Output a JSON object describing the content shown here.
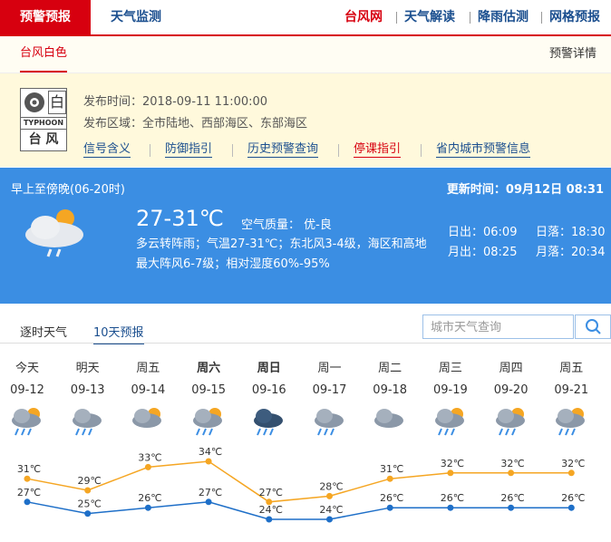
{
  "nav": {
    "tabs": [
      "预警预报",
      "天气监测"
    ],
    "links": [
      "台风网",
      "天气解读",
      "降雨估测",
      "网格预报"
    ]
  },
  "warning": {
    "tab": "台风白色",
    "detail": "预警详情",
    "icon": {
      "level": "白",
      "code": "TYPHOON",
      "name": "台 风"
    },
    "issue_time": "发布时间：2018-09-11 11:00:00",
    "area": "发布区域：全市陆地、西部海区、东部海区",
    "links": [
      "信号含义",
      "防御指引",
      "历史预警查询",
      "停课指引",
      "省内城市预警信息"
    ]
  },
  "today": {
    "period": "早上至傍晚(06-20时)",
    "updated": "更新时间：09月12日 08:31",
    "temperature": "27-31℃",
    "air_quality": "空气质量： 优-良",
    "description": "多云转阵雨；气温27-31℃；东北风3-4级，海区和高地最大阵风6-7级；相对湿度60%-95%",
    "sun": [
      "日出：06:09",
      "日落：18:30",
      "月出：08:25",
      "月落：20:34"
    ]
  },
  "forecast_tabs": [
    "逐时天气",
    "10天预报"
  ],
  "search_placeholder": "城市天气查询",
  "forecast": {
    "days": [
      "今天",
      "明天",
      "周五",
      "周六",
      "周日",
      "周一",
      "周二",
      "周三",
      "周四",
      "周五"
    ]
  },
  "chart_data": {
    "type": "line",
    "categories": [
      "09-12",
      "09-13",
      "09-14",
      "09-15",
      "09-16",
      "09-17",
      "09-18",
      "09-19",
      "09-20",
      "09-21"
    ],
    "series": [
      {
        "color": "#f5a623",
        "values": [
          31,
          29,
          33,
          34,
          27,
          28,
          31,
          32,
          32,
          32
        ],
        "value_labels": [
          "31℃",
          "29℃",
          "33℃",
          "34℃",
          "27℃",
          "28℃",
          "31℃",
          "32℃",
          "32℃",
          "32℃"
        ]
      },
      {
        "color": "#1e6fc8",
        "values": [
          27,
          25,
          26,
          27,
          24,
          24,
          26,
          26,
          26,
          26
        ],
        "value_labels": [
          "27℃",
          "25℃",
          "26℃",
          "27℃",
          "24℃",
          "24℃",
          "26℃",
          "26℃",
          "26℃",
          "26℃"
        ]
      }
    ]
  }
}
